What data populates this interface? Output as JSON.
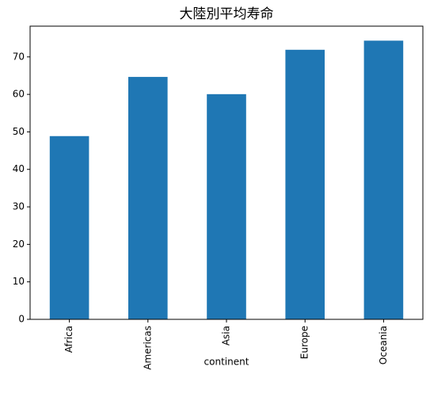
{
  "chart_data": {
    "type": "bar",
    "title": "大陸別平均寿命",
    "x_label": "continent",
    "categories": [
      "Africa",
      "Americas",
      "Asia",
      "Europe",
      "Oceania"
    ],
    "values": [
      48.87,
      64.66,
      60.06,
      71.9,
      74.33
    ],
    "color": "#1f77b4",
    "ylim": [
      0,
      78.2
    ],
    "yticks": [
      0,
      10,
      20,
      30,
      40,
      50,
      60,
      70
    ]
  }
}
